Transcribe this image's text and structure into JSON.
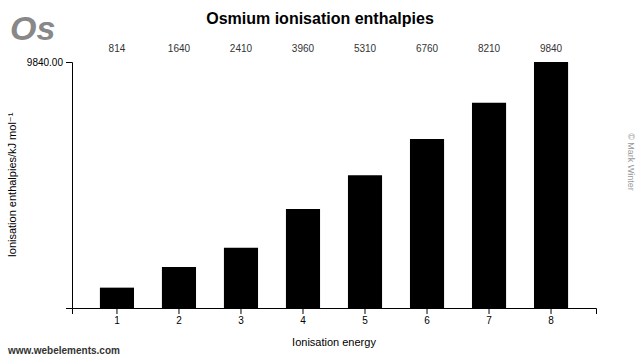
{
  "chart_data": {
    "type": "bar",
    "title": "Osmium ionisation enthalpies",
    "xlabel": "Ionisation energy",
    "ylabel": "Ionisation enthalpies/kJ mol⁻¹",
    "categories": [
      1,
      2,
      3,
      4,
      5,
      6,
      7,
      8
    ],
    "values": [
      814,
      1640,
      2410,
      3960,
      5310,
      6760,
      8210,
      9840
    ],
    "color": "#000000",
    "ylim": [
      0,
      9840
    ],
    "yticks": [
      {
        "value": 9840,
        "label": "9840.00"
      }
    ],
    "grid": false,
    "data_labels": true,
    "annotations": [
      "Os",
      "www.webelements.com",
      "© Mark Winter"
    ]
  }
}
